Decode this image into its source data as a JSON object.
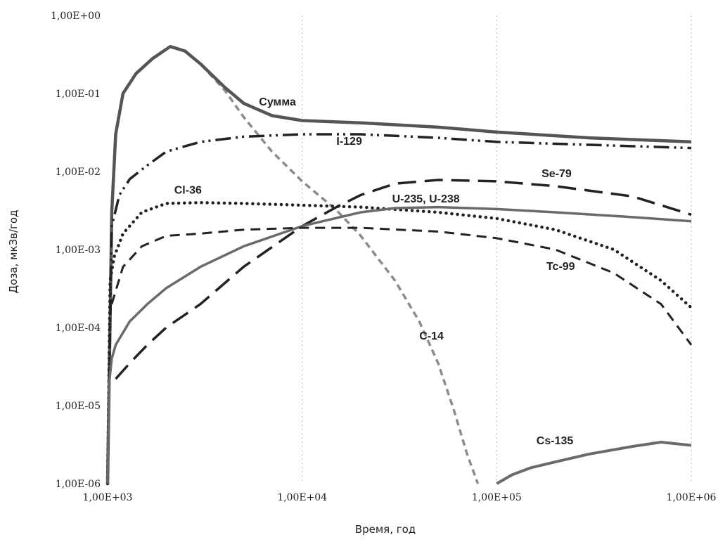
{
  "chart_data": {
    "type": "line",
    "xscale": "log",
    "yscale": "log",
    "xlim": [
      1000,
      1000000
    ],
    "ylim": [
      1e-06,
      1
    ],
    "xlabel": "Время, год",
    "ylabel": "Доза, мкЗв/год",
    "grid": "vertical dotted at major x ticks",
    "x_ticks": [
      {
        "value": 1000,
        "label": "1,00E+03"
      },
      {
        "value": 10000,
        "label": "1,00E+04"
      },
      {
        "value": 100000,
        "label": "1,00E+05"
      },
      {
        "value": 1000000,
        "label": "1,00E+06"
      }
    ],
    "y_ticks": [
      {
        "value": 1,
        "label": "1,00E+00"
      },
      {
        "value": 0.1,
        "label": "1,00E-01"
      },
      {
        "value": 0.01,
        "label": "1,00E-02"
      },
      {
        "value": 0.001,
        "label": "1,00E-03"
      },
      {
        "value": 0.0001,
        "label": "1,00E-04"
      },
      {
        "value": 1e-05,
        "label": "1,00E-05"
      },
      {
        "value": 1e-06,
        "label": "1,00E-06"
      }
    ],
    "series": [
      {
        "name": "C-14",
        "style": "c14-dashed-gray",
        "color": "#8c8c8c",
        "label_at": [
          40000,
          7e-05
        ],
        "points": [
          [
            1000,
            1e-06
          ],
          [
            1050,
            0.003
          ],
          [
            1100,
            0.03
          ],
          [
            1200,
            0.1
          ],
          [
            1400,
            0.18
          ],
          [
            1700,
            0.28
          ],
          [
            2100,
            0.4
          ],
          [
            2500,
            0.35
          ],
          [
            3000,
            0.24
          ],
          [
            4000,
            0.11
          ],
          [
            5000,
            0.05
          ],
          [
            7000,
            0.018
          ],
          [
            10000,
            0.0075
          ],
          [
            15000,
            0.0032
          ],
          [
            20000,
            0.0015
          ],
          [
            30000,
            0.0004
          ],
          [
            40000,
            0.00012
          ],
          [
            50000,
            3.5e-05
          ],
          [
            60000,
            9e-06
          ],
          [
            70000,
            2.5e-06
          ],
          [
            80000,
            1e-06
          ]
        ]
      },
      {
        "name": "Сумма",
        "style": "solid-thick",
        "color": "#555555",
        "label_at": [
          6000,
          0.07
        ],
        "points": [
          [
            1000,
            1e-06
          ],
          [
            1050,
            0.003
          ],
          [
            1100,
            0.03
          ],
          [
            1200,
            0.1
          ],
          [
            1400,
            0.18
          ],
          [
            1700,
            0.28
          ],
          [
            2100,
            0.4
          ],
          [
            2500,
            0.35
          ],
          [
            3000,
            0.24
          ],
          [
            4000,
            0.12
          ],
          [
            5000,
            0.075
          ],
          [
            7000,
            0.052
          ],
          [
            10000,
            0.045
          ],
          [
            20000,
            0.042
          ],
          [
            50000,
            0.037
          ],
          [
            100000,
            0.032
          ],
          [
            300000,
            0.027
          ],
          [
            1000000,
            0.024
          ]
        ]
      },
      {
        "name": "I-129",
        "style": "dash-dot-dot",
        "color": "#222222",
        "label_at": [
          15000,
          0.022
        ],
        "points": [
          [
            1000,
            1e-06
          ],
          [
            1050,
            0.002
          ],
          [
            1150,
            0.005
          ],
          [
            1300,
            0.008
          ],
          [
            1600,
            0.012
          ],
          [
            2000,
            0.018
          ],
          [
            3000,
            0.024
          ],
          [
            5000,
            0.028
          ],
          [
            10000,
            0.03
          ],
          [
            20000,
            0.03
          ],
          [
            50000,
            0.027
          ],
          [
            100000,
            0.024
          ],
          [
            300000,
            0.022
          ],
          [
            1000000,
            0.02
          ]
        ]
      },
      {
        "name": "Cl-36",
        "style": "dotted",
        "color": "#222222",
        "label_at": [
          2200,
          0.0052
        ],
        "points": [
          [
            1000,
            1e-06
          ],
          [
            1030,
            0.0004
          ],
          [
            1080,
            0.0008
          ],
          [
            1200,
            0.0016
          ],
          [
            1500,
            0.003
          ],
          [
            2000,
            0.0039
          ],
          [
            3000,
            0.004
          ],
          [
            5000,
            0.0039
          ],
          [
            10000,
            0.0037
          ],
          [
            20000,
            0.0035
          ],
          [
            50000,
            0.003
          ],
          [
            100000,
            0.0025
          ],
          [
            200000,
            0.0018
          ],
          [
            400000,
            0.001
          ],
          [
            700000,
            0.0004
          ],
          [
            1000000,
            0.00018
          ]
        ]
      },
      {
        "name": "Se-79",
        "style": "long-dash",
        "color": "#222222",
        "label_at": [
          170000,
          0.0085
        ],
        "points": [
          [
            1100,
            2.2e-05
          ],
          [
            1300,
            3.5e-05
          ],
          [
            1600,
            6e-05
          ],
          [
            2000,
            0.0001
          ],
          [
            3000,
            0.0002
          ],
          [
            5000,
            0.0006
          ],
          [
            10000,
            0.002
          ],
          [
            15000,
            0.0035
          ],
          [
            20000,
            0.005
          ],
          [
            30000,
            0.007
          ],
          [
            50000,
            0.0078
          ],
          [
            100000,
            0.0075
          ],
          [
            200000,
            0.0065
          ],
          [
            500000,
            0.0048
          ],
          [
            1000000,
            0.0028
          ]
        ]
      },
      {
        "name": "U-235, U-238",
        "style": "solid-gray",
        "color": "#6a6a6a",
        "label_at": [
          29000,
          0.004
        ],
        "points": [
          [
            1000,
            1e-06
          ],
          [
            1020,
            2e-05
          ],
          [
            1050,
            4e-05
          ],
          [
            1100,
            6e-05
          ],
          [
            1300,
            0.00012
          ],
          [
            1600,
            0.0002
          ],
          [
            2000,
            0.00032
          ],
          [
            3000,
            0.0006
          ],
          [
            5000,
            0.0011
          ],
          [
            10000,
            0.002
          ],
          [
            20000,
            0.003
          ],
          [
            30000,
            0.0034
          ],
          [
            50000,
            0.0035
          ],
          [
            100000,
            0.0033
          ],
          [
            200000,
            0.003
          ],
          [
            500000,
            0.0026
          ],
          [
            1000000,
            0.0023
          ]
        ]
      },
      {
        "name": "Tc-99",
        "style": "medium-dash",
        "color": "#222222",
        "label_at": [
          180000,
          0.00055
        ],
        "points": [
          [
            1050,
            0.0002
          ],
          [
            1200,
            0.0006
          ],
          [
            1500,
            0.0011
          ],
          [
            2000,
            0.0015
          ],
          [
            3000,
            0.0016
          ],
          [
            5000,
            0.0018
          ],
          [
            10000,
            0.0019
          ],
          [
            20000,
            0.0019
          ],
          [
            50000,
            0.0017
          ],
          [
            100000,
            0.0014
          ],
          [
            200000,
            0.001
          ],
          [
            400000,
            0.0005
          ],
          [
            700000,
            0.0002
          ],
          [
            1000000,
            6e-05
          ]
        ]
      },
      {
        "name": "Cs-135",
        "style": "solid-gray-thick",
        "color": "#6a6a6a",
        "label_at": [
          160000,
          3.2e-06
        ],
        "points": [
          [
            100000,
            1e-06
          ],
          [
            120000,
            1.3e-06
          ],
          [
            150000,
            1.6e-06
          ],
          [
            200000,
            1.9e-06
          ],
          [
            300000,
            2.4e-06
          ],
          [
            500000,
            3e-06
          ],
          [
            700000,
            3.4e-06
          ],
          [
            1000000,
            3.1e-06
          ]
        ]
      }
    ]
  }
}
